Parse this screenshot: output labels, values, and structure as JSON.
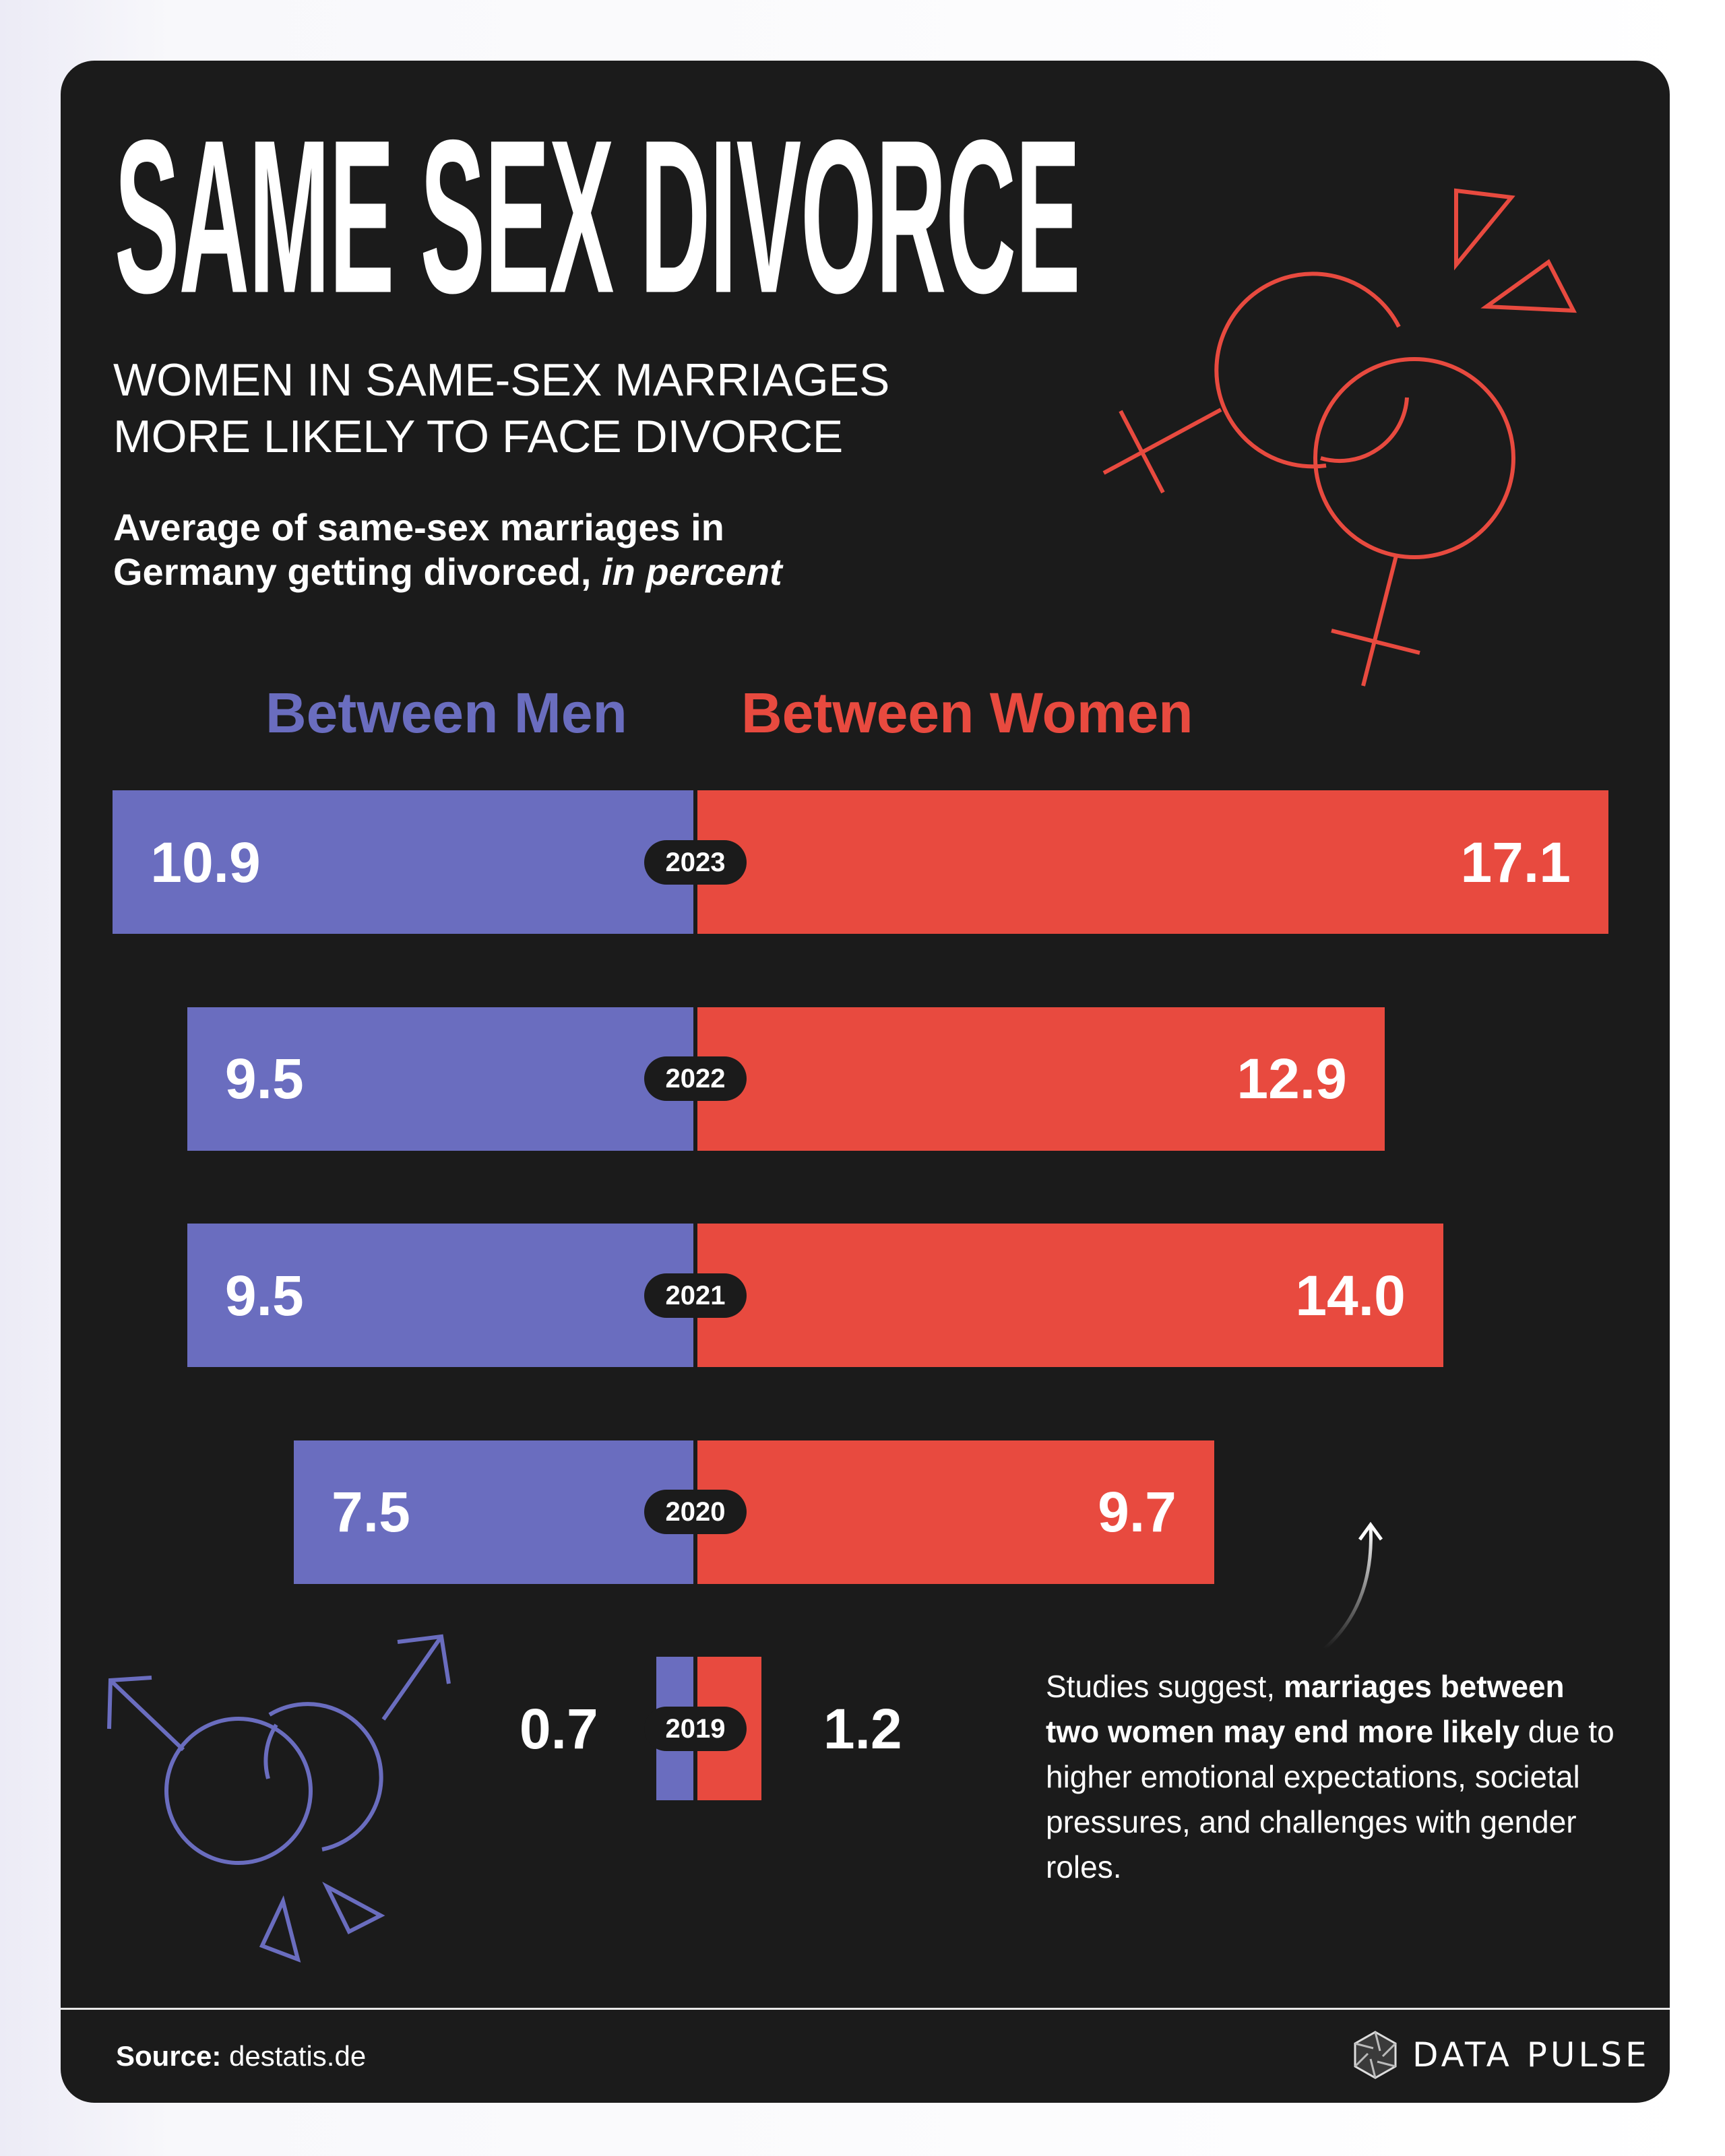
{
  "title": "SAME SEX DIVORCE",
  "subtitle": [
    "WOMEN IN SAME-SEX MARRIAGES",
    "MORE LIKELY TO FACE DIVORCE"
  ],
  "description": {
    "line1": "Average of same-sex marriages in",
    "line2_plain": "Germany getting divorced, ",
    "line2_italic": "in percent"
  },
  "chart_data": {
    "type": "bar",
    "orientation": "horizontal-diverging",
    "categories": [
      "2023",
      "2022",
      "2021",
      "2020",
      "2019"
    ],
    "series": [
      {
        "name": "Between Men",
        "values": [
          10.9,
          9.5,
          9.5,
          7.5,
          0.7
        ],
        "labels": [
          "10.9",
          "9.5",
          "9.5",
          "7.5",
          "0.7"
        ],
        "color": "#6a6dbf"
      },
      {
        "name": "Between Women",
        "values": [
          17.1,
          12.9,
          14.0,
          9.7,
          1.2
        ],
        "labels": [
          "17.1",
          "12.9",
          "14.0",
          "9.7",
          "1.2"
        ],
        "color": "#e84a3f"
      }
    ],
    "unit": "percent",
    "grid": false,
    "legend": "top"
  },
  "annotation": {
    "part1": "Studies suggest, ",
    "bold": "marriages between two women may end more likely",
    "part2": " due to higher emotional expectations, societal pressures, and challenges with gender roles."
  },
  "footer": {
    "source_label": "Source:",
    "source_value": " destatis.de",
    "brand": "DATA PULSE"
  },
  "colors": {
    "background": "#1b1b1b",
    "men": "#6a6dbf",
    "women": "#e84a3f"
  }
}
